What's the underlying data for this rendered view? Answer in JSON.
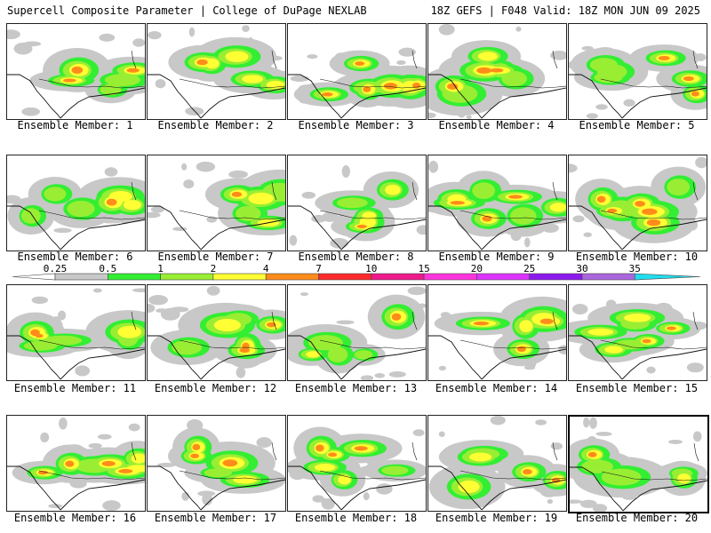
{
  "header": {
    "left": "Supercell Composite Parameter | College of DuPage NEXLAB",
    "right": "18Z GEFS | F048 Valid: 18Z MON JUN 09 2025"
  },
  "members": [
    {
      "label": "Ensemble Member: 1"
    },
    {
      "label": "Ensemble Member: 2"
    },
    {
      "label": "Ensemble Member: 3"
    },
    {
      "label": "Ensemble Member: 4"
    },
    {
      "label": "Ensemble Member: 5"
    },
    {
      "label": "Ensemble Member: 6"
    },
    {
      "label": "Ensemble Member: 7"
    },
    {
      "label": "Ensemble Member: 8"
    },
    {
      "label": "Ensemble Member: 9"
    },
    {
      "label": "Ensemble Member: 10"
    },
    {
      "label": "Ensemble Member: 11"
    },
    {
      "label": "Ensemble Member: 12"
    },
    {
      "label": "Ensemble Member: 13"
    },
    {
      "label": "Ensemble Member: 14"
    },
    {
      "label": "Ensemble Member: 15"
    },
    {
      "label": "Ensemble Member: 16"
    },
    {
      "label": "Ensemble Member: 17"
    },
    {
      "label": "Ensemble Member: 18"
    },
    {
      "label": "Ensemble Member: 19"
    },
    {
      "label": "Ensemble Member: 20",
      "selected": true
    }
  ],
  "colorbar": {
    "levels": [
      "0.25",
      "0.5",
      "1",
      "2",
      "4",
      "7",
      "10",
      "15",
      "20",
      "25",
      "30",
      "35"
    ],
    "colors": [
      "#c8c8c8",
      "#33ee33",
      "#99ee33",
      "#ffff33",
      "#ff8c1a",
      "#ff2a2a",
      "#ee1a8c",
      "#ff33dd",
      "#dd33ff",
      "#8c1aee",
      "#aa66dd",
      "#22ddee"
    ]
  }
}
